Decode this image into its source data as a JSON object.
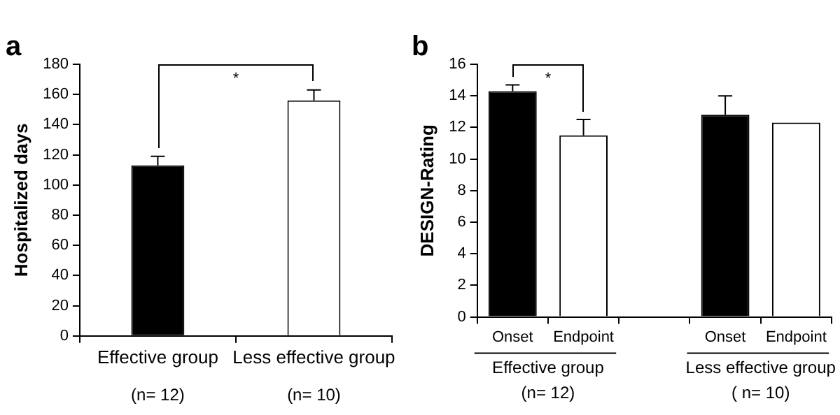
{
  "chart_data": [
    {
      "type": "bar",
      "title": "a",
      "ylabel": "Hospitalized days",
      "categories": [
        "Effective group",
        "Less effective group"
      ],
      "values": [
        113,
        156
      ],
      "colors": [
        "#000000",
        "#ffffff"
      ],
      "errors": [
        [
          113,
          119
        ],
        [
          156,
          163
        ]
      ],
      "ylim": [
        0,
        180
      ],
      "yticks": [
        0,
        20,
        40,
        60,
        80,
        100,
        120,
        140,
        160,
        180
      ],
      "grid": false,
      "legend": false,
      "annotations": [
        "*",
        "(n= 12)",
        "(n= 10)"
      ]
    },
    {
      "type": "bar",
      "title": "b",
      "ylabel": "DESIGN-Rating",
      "categories": [
        "Onset",
        "Endpoint",
        null,
        "Onset",
        "Endpoint"
      ],
      "values": [
        14.3,
        11.5,
        null,
        12.8,
        12.3
      ],
      "colors": [
        "#000000",
        "#ffffff",
        "#ffffff",
        "#000000",
        "#ffffff"
      ],
      "errors": [
        [
          14.3,
          14.7
        ],
        [
          11.5,
          12.5
        ],
        null,
        [
          12.8,
          14.0
        ],
        null
      ],
      "ylim": [
        0,
        16
      ],
      "yticks": [
        0,
        2,
        4,
        6,
        8,
        10,
        12,
        14,
        16
      ],
      "grid": false,
      "legend": false,
      "annotations": [
        "*",
        "Effective group",
        "Less effective group",
        "(n= 12)",
        "( n= 10)"
      ]
    }
  ]
}
